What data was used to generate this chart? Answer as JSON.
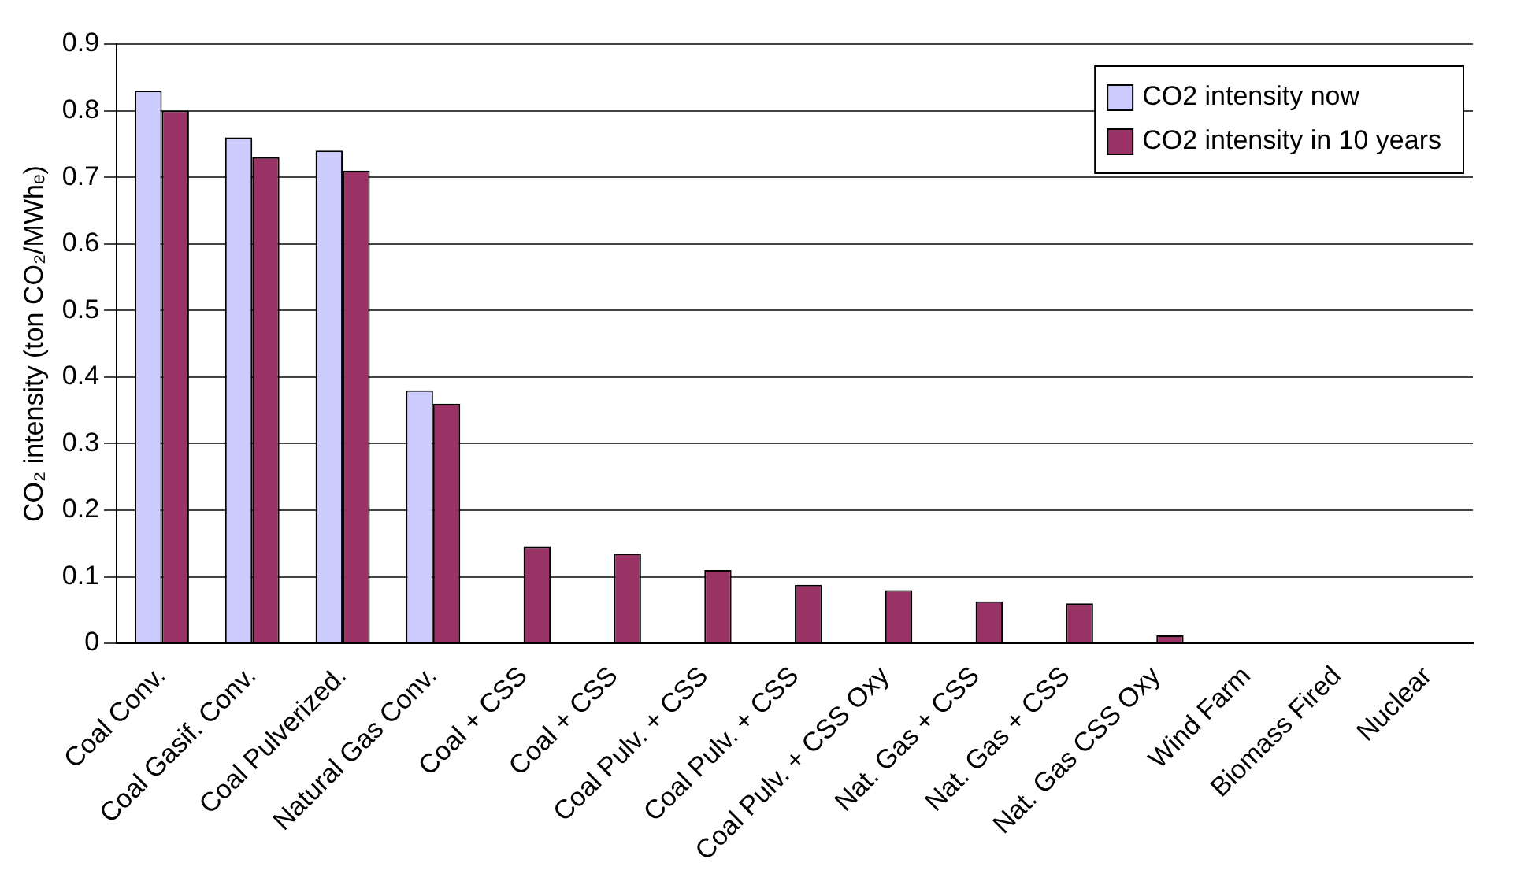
{
  "chart_data": {
    "type": "bar",
    "ylabel": "CO₂ intensity (ton CO₂/MWhₑ)",
    "categories": [
      "Coal Conv.",
      "Coal Gasif. Conv.",
      "Coal Pulverized.",
      "Natural Gas Conv.",
      "Coal + CSS",
      "Coal + CSS",
      "Coal Pulv. + CSS",
      "Coal Pulv. + CSS",
      "Coal Pulv. + CSS Oxy",
      "Nat. Gas + CSS",
      "Nat. Gas + CSS",
      "Nat. Gas CSS Oxy",
      "Wind Farm",
      "Biomass Fired",
      "Nuclear"
    ],
    "series": [
      {
        "name": "CO2 intensity now",
        "color": "#ccccff",
        "values": [
          0.83,
          0.76,
          0.74,
          0.38,
          null,
          null,
          null,
          null,
          null,
          null,
          null,
          null,
          null,
          null,
          null
        ]
      },
      {
        "name": "CO2 intensity in 10 years",
        "color": "#993366",
        "values": [
          0.8,
          0.73,
          0.71,
          0.36,
          0.145,
          0.135,
          0.11,
          0.088,
          0.08,
          0.063,
          0.06,
          0.012,
          null,
          null,
          null
        ]
      }
    ],
    "ylim": [
      0,
      0.9
    ],
    "yticks": [
      0,
      0.1,
      0.2,
      0.3,
      0.4,
      0.5,
      0.6,
      0.7,
      0.8,
      0.9
    ],
    "grid": "y",
    "legend": "top right"
  }
}
